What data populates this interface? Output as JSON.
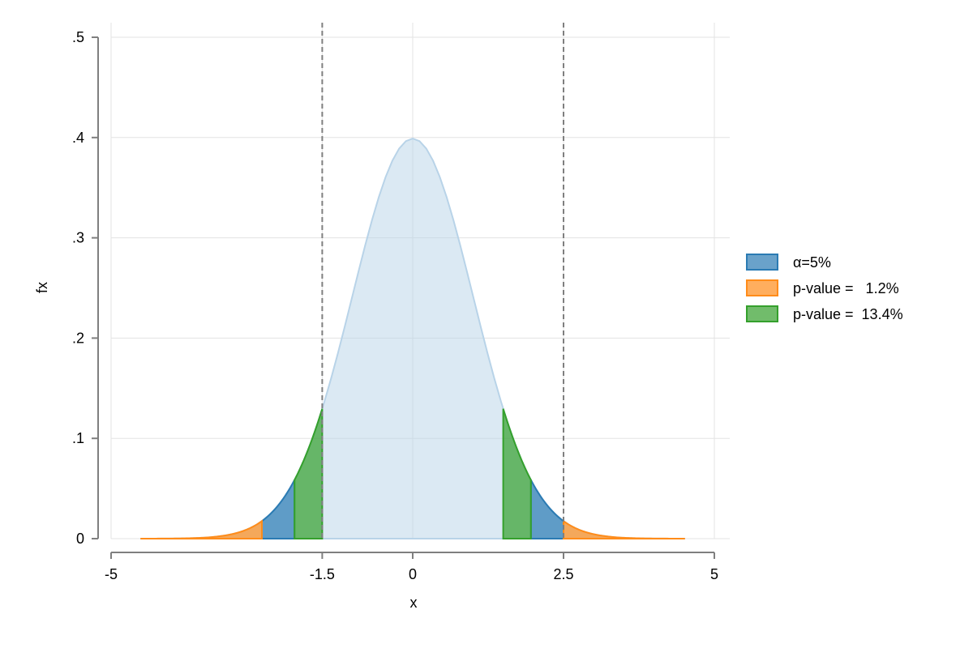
{
  "chart_data": {
    "type": "area",
    "xlabel": "x",
    "ylabel": "fx",
    "xlim": [
      -5,
      5
    ],
    "ylim": [
      0,
      0.5
    ],
    "x_ticks": [
      -5,
      -1.5,
      0,
      2.5,
      5
    ],
    "x_tick_labels": [
      "-5",
      "-1.5",
      "0",
      "2.5",
      "5"
    ],
    "y_ticks": [
      0,
      0.1,
      0.2,
      0.3,
      0.4,
      0.5
    ],
    "y_tick_labels": [
      "0",
      ".1",
      ".2",
      ".3",
      ".4",
      ".5"
    ],
    "grid": true,
    "legend_position": "right",
    "density": {
      "distribution": "standard normal",
      "mean": 0,
      "sd": 1,
      "x_range": [
        -4.5,
        4.5
      ],
      "color": "#b8d3e8"
    },
    "reference_lines": [
      -1.5,
      2.5
    ],
    "series": [
      {
        "name": "α=5%",
        "color": "#2b7bb3",
        "regions": [
          [
            -2.5,
            -1.96
          ],
          [
            1.96,
            2.5
          ]
        ]
      },
      {
        "name": "p-value =   1.2%",
        "color": "#ff8c1a",
        "regions": [
          [
            -4.5,
            -2.5
          ],
          [
            2.5,
            4.5
          ]
        ]
      },
      {
        "name": "p-value =  13.4%",
        "color": "#34a02c",
        "regions": [
          [
            -1.96,
            -1.5
          ],
          [
            1.5,
            1.96
          ]
        ]
      }
    ]
  }
}
